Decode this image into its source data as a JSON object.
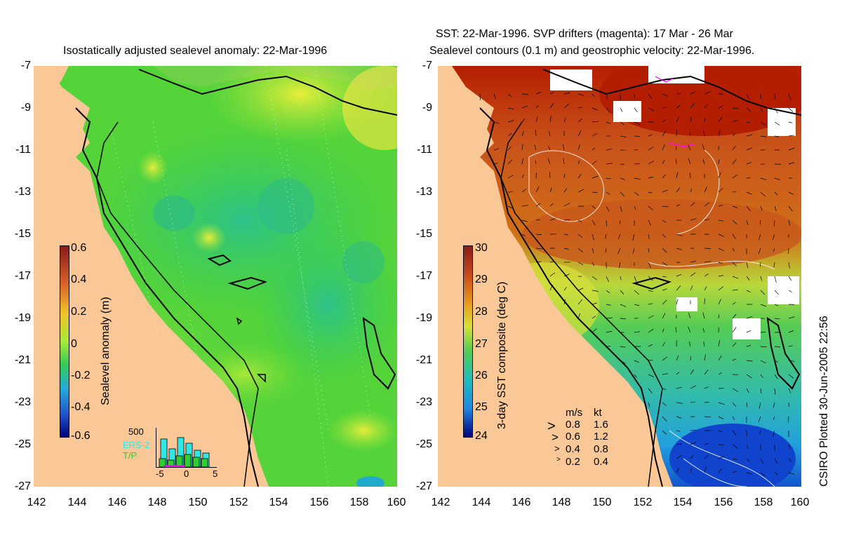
{
  "left_panel": {
    "title": "Isostatically adjusted sealevel anomaly: 22-Mar-1996",
    "colorbar_label": "Sealevel anomaly (m)",
    "colorbar_ticks": [
      "0.6",
      "0.4",
      "0.2",
      "0",
      "-0.2",
      "-0.4",
      "-0.6"
    ],
    "histogram": {
      "ymax_label": "500",
      "xtick_labels": [
        "-5",
        "0",
        "5"
      ],
      "legend": [
        "ERS-2",
        "T/P"
      ],
      "colors": {
        "ers2": "#33e6e6",
        "tp": "#33cc33"
      }
    }
  },
  "right_panel": {
    "title_line1": "SST: 22-Mar-1996. SVP drifters (magenta): 17 Mar - 26 Mar",
    "title_line2": "Sealevel contours (0.1 m) and geostrophic velocity: 22-Mar-1996.",
    "colorbar_label": "3-day SST composite (deg C)",
    "colorbar_ticks": [
      "30",
      "29",
      "28",
      "27",
      "26",
      "25",
      "24"
    ],
    "velocity_legend": {
      "header": [
        "m/s",
        "kt"
      ],
      "rows": [
        [
          "0.8",
          "1.6"
        ],
        [
          "0.6",
          "1.2"
        ],
        [
          "0.4",
          "0.8"
        ],
        [
          "0.2",
          "0.4"
        ]
      ]
    }
  },
  "axes": {
    "y_ticks": [
      "-7",
      "-9",
      "-11",
      "-13",
      "-15",
      "-17",
      "-19",
      "-21",
      "-23",
      "-25",
      "-27"
    ],
    "x_ticks": [
      "142",
      "144",
      "146",
      "148",
      "150",
      "152",
      "154",
      "156",
      "158",
      "160"
    ]
  },
  "credit": "CSIRO Plotted 30-Jun-2005 22:56",
  "colors": {
    "land": "#f9c896",
    "sea_green": "#33cc33",
    "sst_red": "#b41e00"
  }
}
